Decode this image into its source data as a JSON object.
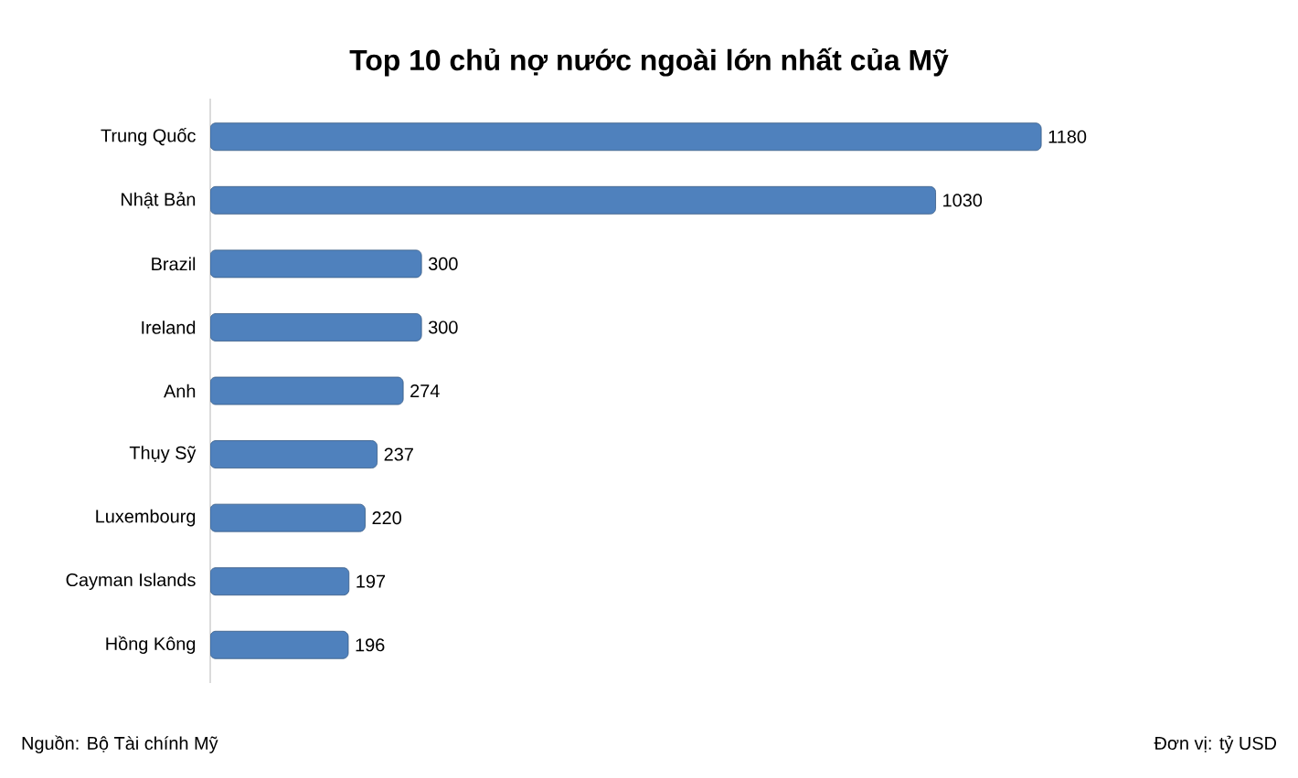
{
  "chart_data": {
    "type": "bar",
    "orientation": "horizontal",
    "title": "Top 10 chủ nợ nước ngoài lớn nhất của Mỹ",
    "categories": [
      "Trung Quốc",
      "Nhật Bản",
      "Brazil",
      "Ireland",
      "Anh",
      "Thụy Sỹ",
      "Luxembourg",
      "Cayman Islands",
      "Hồng Kông"
    ],
    "values": [
      1180,
      1030,
      300,
      300,
      274,
      237,
      220,
      197,
      196
    ],
    "color": "#4f81bd",
    "data_labels": true,
    "tick_labels": "y",
    "annotations": [
      "Nguồn: Bộ Tài chính Mỹ",
      "Đơn vị: tỷ USD"
    ]
  }
}
